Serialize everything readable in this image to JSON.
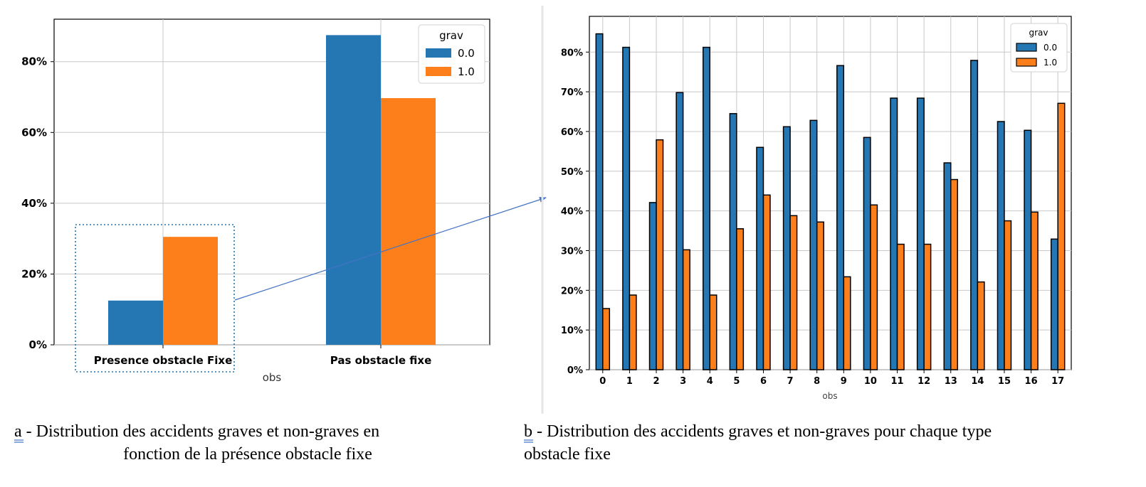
{
  "colors": {
    "grav_0": "#2577b4",
    "grav_1": "#fd7f1b",
    "grid": "#c8c8c8"
  },
  "chart_data": [
    {
      "type": "bar",
      "categories": [
        "Presence obstacle Fixe",
        "Pas obstacle fixe"
      ],
      "series": [
        {
          "name": "0.0",
          "values": [
            12.5,
            87.5
          ]
        },
        {
          "name": "1.0",
          "values": [
            30.5,
            69.7
          ]
        }
      ],
      "xlabel": "obs",
      "legend_title": "grav",
      "ylim": [
        0,
        92
      ],
      "yticks": [
        0,
        20,
        40,
        60,
        80
      ],
      "ytick_labels": [
        "0%",
        "20%",
        "40%",
        "60%",
        "80%"
      ],
      "grid": true,
      "legend_position": "top-right"
    },
    {
      "type": "bar",
      "categories": [
        "0",
        "1",
        "2",
        "3",
        "4",
        "5",
        "6",
        "7",
        "8",
        "9",
        "10",
        "11",
        "12",
        "13",
        "14",
        "15",
        "16",
        "17"
      ],
      "series": [
        {
          "name": "0.0",
          "values": [
            84.6,
            81.2,
            42.1,
            69.8,
            81.2,
            64.5,
            56.0,
            61.2,
            62.8,
            76.6,
            58.5,
            68.4,
            68.4,
            52.1,
            77.9,
            62.5,
            60.3,
            32.9
          ]
        },
        {
          "name": "1.0",
          "values": [
            15.4,
            18.8,
            57.9,
            30.2,
            18.8,
            35.5,
            44.0,
            38.8,
            37.2,
            23.4,
            41.5,
            31.6,
            31.6,
            47.9,
            22.1,
            37.5,
            39.7,
            67.1
          ]
        }
      ],
      "xlabel": "obs",
      "legend_title": "grav",
      "ylim": [
        0,
        89
      ],
      "yticks": [
        0,
        10,
        20,
        30,
        40,
        50,
        60,
        70,
        80
      ],
      "ytick_labels": [
        "0%",
        "10%",
        "20%",
        "30%",
        "40%",
        "50%",
        "60%",
        "70%",
        "80%"
      ],
      "grid": true,
      "legend_position": "top-right"
    }
  ],
  "captions": {
    "a_letter": "a",
    "a_line1": " - Distribution des accidents graves et non-graves en",
    "a_line2": "fonction de la présence obstacle fixe",
    "b_letter": "b",
    "b_line1": " - Distribution des accidents graves et non-graves pour chaque type",
    "b_line2": "obstacle fixe"
  }
}
